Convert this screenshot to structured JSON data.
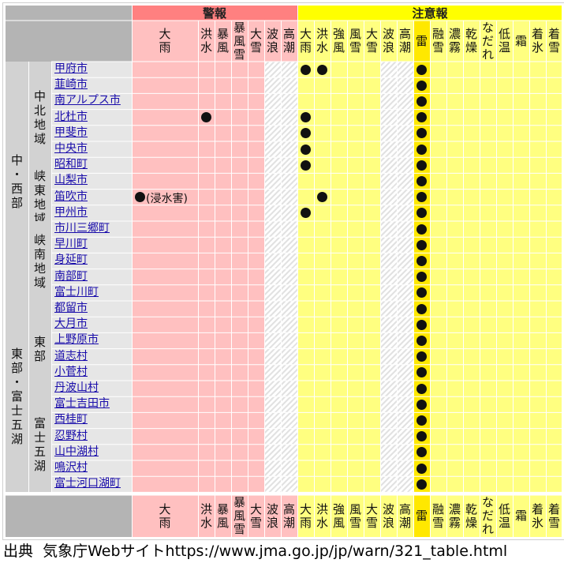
{
  "page": {
    "source_label": "出典",
    "source_text": "気象庁Webサイトhttps://www.jma.go.jp/jp/warn/321_table.html"
  },
  "table": {
    "warning_label": "警報",
    "advisory_label": "注意報",
    "warning_columns": [
      {
        "id": "w_heavy_rain",
        "lines": [
          "大",
          "雨"
        ]
      },
      {
        "id": "w_flood",
        "lines": [
          "洪",
          "水"
        ]
      },
      {
        "id": "w_storm",
        "lines": [
          "暴",
          "風"
        ]
      },
      {
        "id": "w_snowstorm",
        "lines": [
          "暴",
          "風",
          "雪"
        ]
      },
      {
        "id": "w_heavy_snow",
        "lines": [
          "大",
          "雪"
        ]
      },
      {
        "id": "w_high_waves",
        "lines": [
          "波",
          "浪"
        ]
      },
      {
        "id": "w_storm_surge",
        "lines": [
          "高",
          "潮"
        ]
      }
    ],
    "advisory_columns": [
      {
        "id": "a_heavy_rain",
        "lines": [
          "大",
          "雨"
        ]
      },
      {
        "id": "a_flood",
        "lines": [
          "洪",
          "水"
        ]
      },
      {
        "id": "a_strong_wind",
        "lines": [
          "強",
          "風"
        ]
      },
      {
        "id": "a_wind_snow",
        "lines": [
          "風",
          "雪"
        ]
      },
      {
        "id": "a_heavy_snow",
        "lines": [
          "大",
          "雪"
        ]
      },
      {
        "id": "a_high_waves",
        "lines": [
          "波",
          "浪"
        ]
      },
      {
        "id": "a_storm_surge",
        "lines": [
          "高",
          "潮"
        ]
      },
      {
        "id": "a_thunder",
        "lines": [
          "雷"
        ]
      },
      {
        "id": "a_snowmelt",
        "lines": [
          "融",
          "雪"
        ]
      },
      {
        "id": "a_dense_fog",
        "lines": [
          "濃",
          "霧"
        ]
      },
      {
        "id": "a_dry_air",
        "lines": [
          "乾",
          "燥"
        ]
      },
      {
        "id": "a_avalanche",
        "lines": [
          "な",
          "だ",
          "れ"
        ]
      },
      {
        "id": "a_low_temp",
        "lines": [
          "低",
          "温"
        ]
      },
      {
        "id": "a_frost",
        "lines": [
          "霜"
        ]
      },
      {
        "id": "a_icing",
        "lines": [
          "着",
          "氷"
        ]
      },
      {
        "id": "a_snow_accretion",
        "lines": [
          "着",
          "雪"
        ]
      }
    ],
    "regions": [
      {
        "name_lines": [
          "中",
          "・",
          "西",
          "部"
        ],
        "subregions": [
          {
            "name_lines": [
              "中",
              "北",
              "地",
              "域"
            ],
            "municipalities": [
              {
                "name": "甲府市",
                "marks": [
                  "a_heavy_rain",
                  "a_flood",
                  "a_thunder"
                ]
              },
              {
                "name": "韮崎市",
                "marks": [
                  "a_thunder"
                ]
              },
              {
                "name": "南アルプス市",
                "marks": [
                  "a_thunder"
                ]
              },
              {
                "name": "北杜市",
                "marks": [
                  "w_flood",
                  "a_heavy_rain",
                  "a_thunder"
                ]
              },
              {
                "name": "甲斐市",
                "marks": [
                  "a_heavy_rain",
                  "a_thunder"
                ]
              },
              {
                "name": "中央市",
                "marks": [
                  "a_heavy_rain",
                  "a_thunder"
                ]
              },
              {
                "name": "昭和町",
                "marks": [
                  "a_heavy_rain",
                  "a_thunder"
                ]
              }
            ]
          },
          {
            "name_lines": [
              "峡",
              "東",
              "地",
              "域"
            ],
            "municipalities": [
              {
                "name": "山梨市",
                "marks": [
                  "a_thunder"
                ]
              },
              {
                "name": "笛吹市",
                "marks": [
                  "w_heavy_rain",
                  "a_flood",
                  "a_thunder"
                ],
                "note": "(浸水害)"
              },
              {
                "name": "甲州市",
                "marks": [
                  "a_heavy_rain",
                  "a_thunder"
                ]
              }
            ]
          },
          {
            "name_lines": [
              "峡",
              "南",
              "地",
              "域"
            ],
            "municipalities": [
              {
                "name": "市川三郷町",
                "marks": [
                  "a_thunder"
                ]
              },
              {
                "name": "早川町",
                "marks": [
                  "a_thunder"
                ]
              },
              {
                "name": "身延町",
                "marks": [
                  "a_thunder"
                ]
              },
              {
                "name": "南部町",
                "marks": [
                  "a_thunder"
                ]
              },
              {
                "name": "富士川町",
                "marks": [
                  "a_thunder"
                ]
              }
            ]
          }
        ]
      },
      {
        "name_lines": [
          "東",
          "部",
          "・",
          "富",
          "士",
          "五",
          "湖"
        ],
        "subregions": [
          {
            "name_lines": [
              "東",
              "部"
            ],
            "municipalities": [
              {
                "name": "都留市",
                "marks": [
                  "a_thunder"
                ]
              },
              {
                "name": "大月市",
                "marks": [
                  "a_thunder"
                ]
              },
              {
                "name": "上野原市",
                "marks": [
                  "a_thunder"
                ]
              },
              {
                "name": "道志村",
                "marks": [
                  "a_thunder"
                ]
              },
              {
                "name": "小菅村",
                "marks": [
                  "a_thunder"
                ]
              },
              {
                "name": "丹波山村",
                "marks": [
                  "a_thunder"
                ]
              }
            ]
          },
          {
            "name_lines": [
              "富",
              "士",
              "五",
              "湖"
            ],
            "municipalities": [
              {
                "name": "富士吉田市",
                "marks": [
                  "a_thunder"
                ]
              },
              {
                "name": "西桂町",
                "marks": [
                  "a_thunder"
                ]
              },
              {
                "name": "忍野村",
                "marks": [
                  "a_thunder"
                ]
              },
              {
                "name": "山中湖村",
                "marks": [
                  "a_thunder"
                ]
              },
              {
                "name": "鳴沢村",
                "marks": [
                  "a_thunder"
                ]
              },
              {
                "name": "富士河口湖町",
                "marks": [
                  "a_thunder"
                ]
              }
            ]
          }
        ]
      }
    ],
    "colors": {
      "warning_header": "#ff8080",
      "warning_cell": "#ffc0c0",
      "advisory_header": "#ffff00",
      "advisory_cell": "#ffff80",
      "thunder_column": "#ffe800",
      "header_gray": "#b4b4b4",
      "region_gray": "#d2d2d2",
      "municipality_gray": "#e6e6e6",
      "link": "#1a0dab"
    }
  }
}
